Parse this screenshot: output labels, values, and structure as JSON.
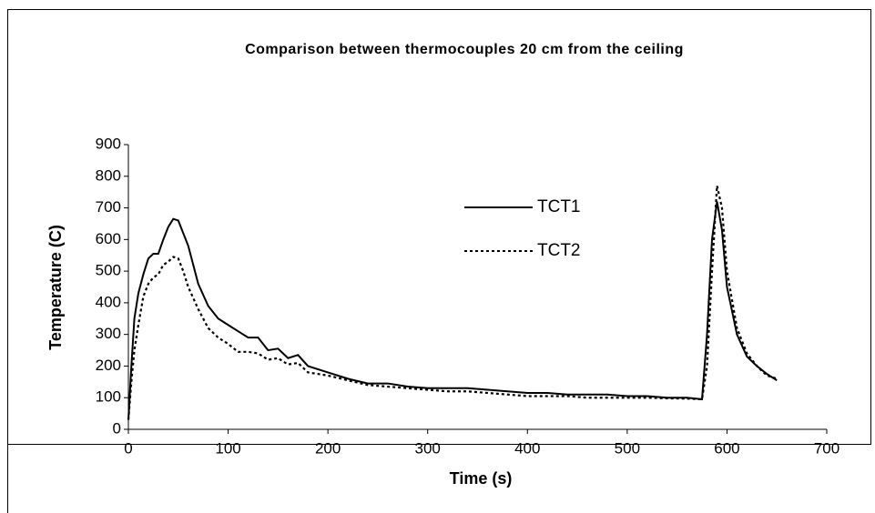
{
  "chart_data": {
    "type": "line",
    "title": "Comparison between thermocouples 20 cm from the ceiling",
    "x_label": "Time (s)",
    "y_label": "Temperature (C)",
    "xlim": [
      0,
      700
    ],
    "xticks": [
      0,
      100,
      200,
      300,
      400,
      500,
      600,
      700
    ],
    "ylim": [
      0,
      900
    ],
    "yticks": [
      0,
      100,
      200,
      300,
      400,
      500,
      600,
      700,
      800,
      900
    ],
    "grid": false,
    "x": [
      0,
      3,
      6,
      10,
      15,
      20,
      25,
      30,
      35,
      40,
      45,
      50,
      55,
      60,
      70,
      80,
      90,
      100,
      110,
      120,
      130,
      140,
      150,
      160,
      170,
      180,
      200,
      220,
      240,
      260,
      280,
      300,
      320,
      340,
      360,
      380,
      400,
      420,
      440,
      460,
      480,
      500,
      520,
      540,
      560,
      575,
      580,
      585,
      590,
      595,
      600,
      610,
      620,
      630,
      640,
      650
    ],
    "series": [
      {
        "name": "TCT1",
        "color": "#000000",
        "line_style": "solid",
        "values": [
          30,
          200,
          350,
          430,
          490,
          540,
          555,
          555,
          600,
          640,
          665,
          660,
          620,
          580,
          460,
          390,
          350,
          330,
          310,
          290,
          290,
          250,
          255,
          225,
          235,
          200,
          180,
          160,
          145,
          145,
          135,
          130,
          130,
          130,
          125,
          120,
          115,
          115,
          110,
          110,
          110,
          105,
          105,
          100,
          100,
          95,
          300,
          600,
          720,
          630,
          450,
          300,
          230,
          200,
          175,
          155
        ]
      },
      {
        "name": "TCT2",
        "color": "#000000",
        "line_style": "dotted",
        "values": [
          30,
          150,
          250,
          330,
          420,
          460,
          480,
          490,
          520,
          530,
          545,
          540,
          500,
          450,
          380,
          320,
          290,
          270,
          245,
          245,
          240,
          220,
          225,
          205,
          210,
          180,
          170,
          155,
          140,
          135,
          130,
          125,
          120,
          120,
          115,
          110,
          105,
          105,
          105,
          100,
          100,
          100,
          100,
          98,
          97,
          95,
          200,
          500,
          770,
          700,
          500,
          320,
          240,
          200,
          170,
          160
        ]
      }
    ]
  }
}
